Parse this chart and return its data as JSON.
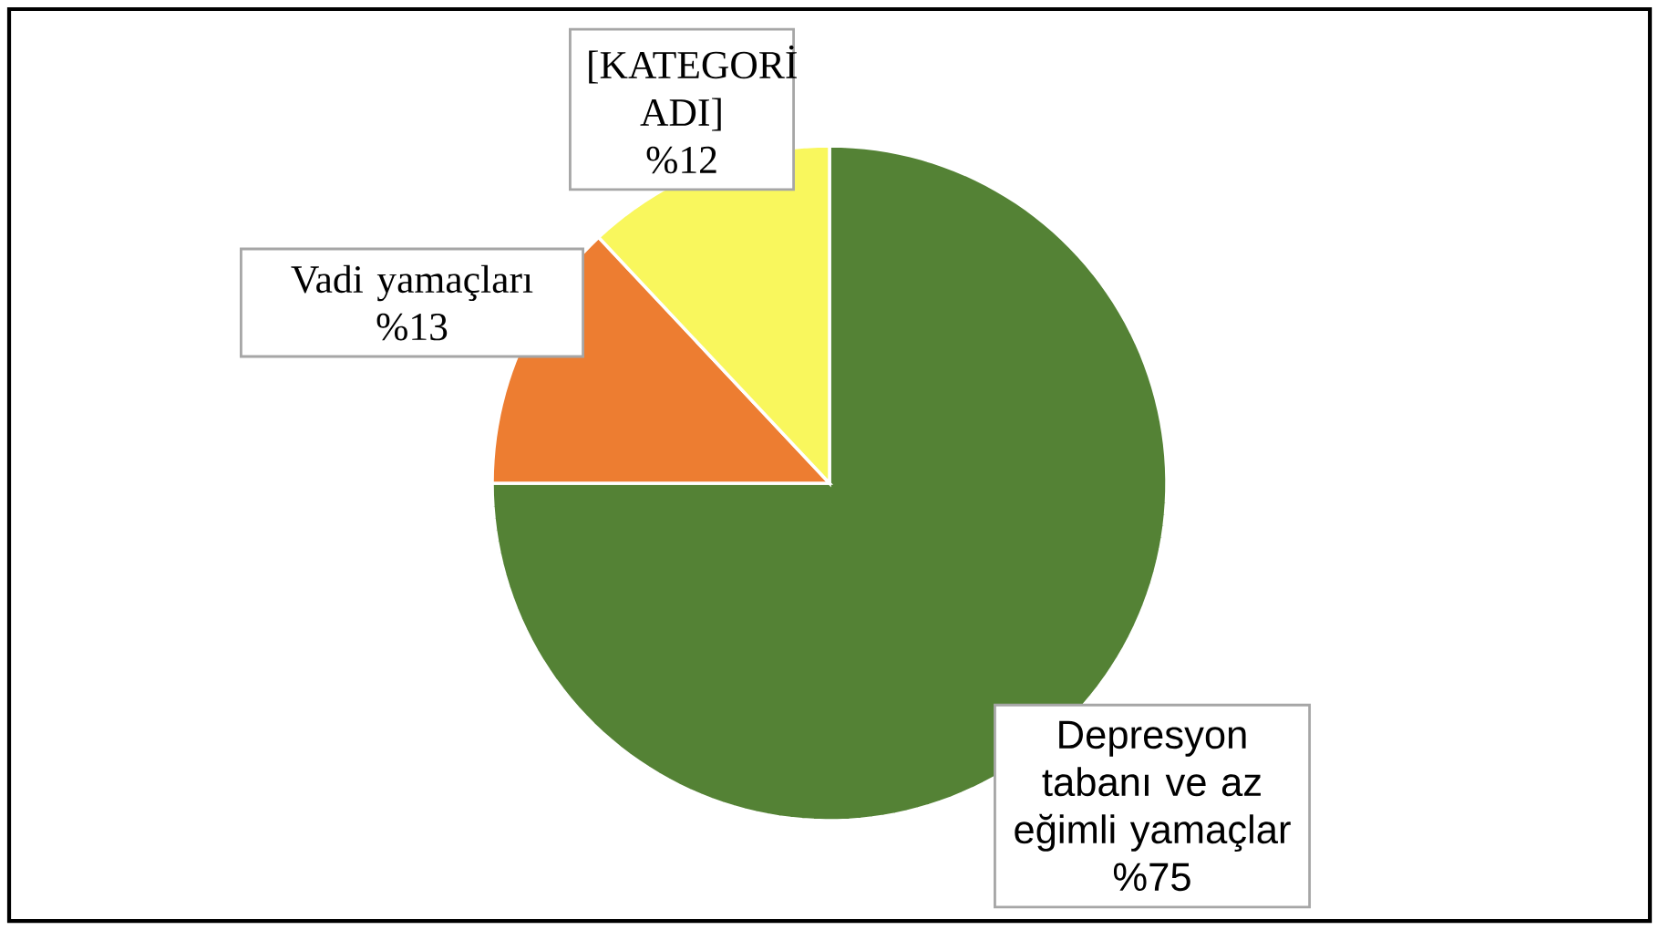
{
  "chart_data": {
    "type": "pie",
    "categories": [
      "Depresyon tabanı ve az eğimli yamaçlar",
      "Vadi yamaçları",
      "[KATEGORİ ADI]"
    ],
    "values": [
      75,
      13,
      12
    ],
    "colors": [
      "#548235",
      "#ed7d31",
      "#f9f75d"
    ],
    "value_labels": [
      "%75",
      "%13",
      "%12"
    ]
  }
}
